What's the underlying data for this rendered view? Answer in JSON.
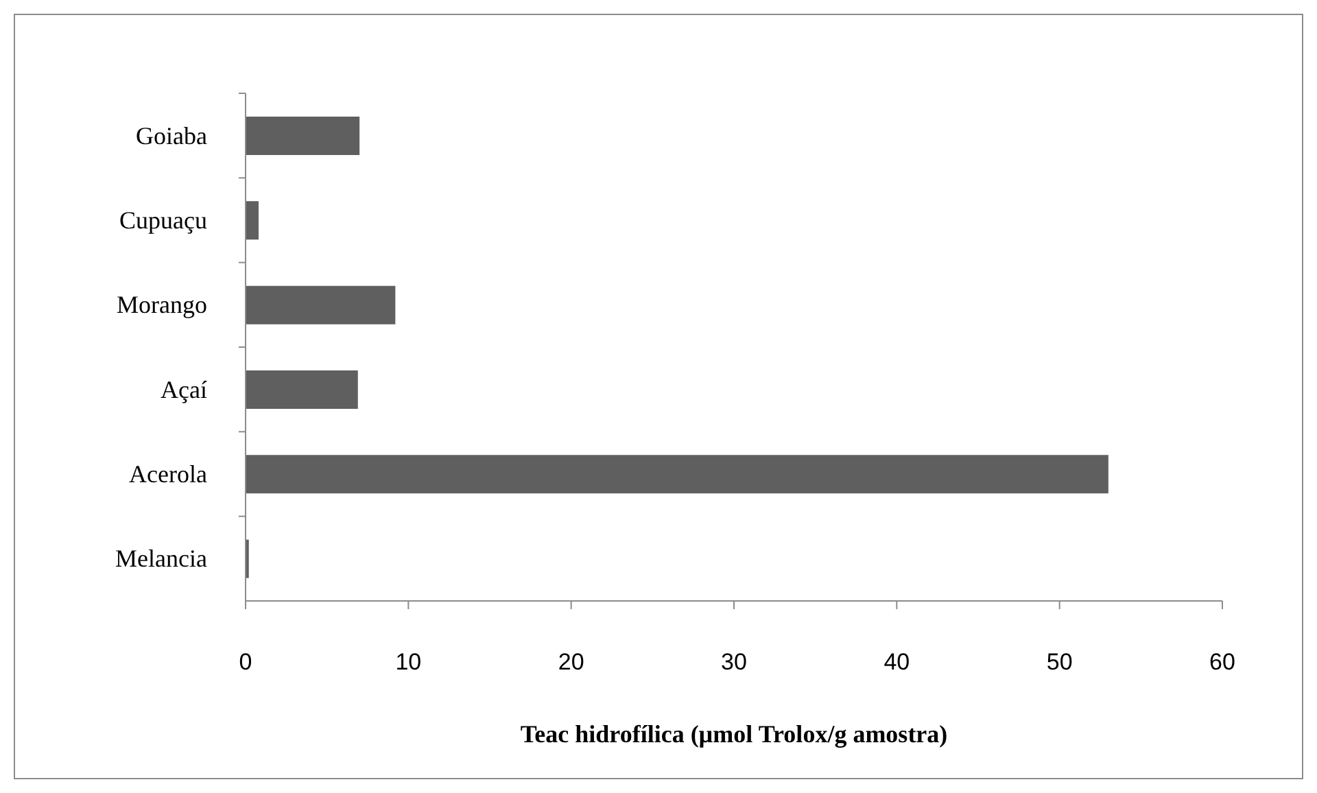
{
  "chart_data": {
    "type": "bar",
    "orientation": "horizontal",
    "categories": [
      "Goiaba",
      "Cupuaçu",
      "Morango",
      "Açaí",
      "Acerola",
      "Melancia"
    ],
    "values": [
      7,
      0.8,
      9.2,
      6.9,
      53,
      0.2
    ],
    "color": "#5f5f5f",
    "xlabel": "Teac hidrofílica (µmol Trolox/g amostra)",
    "xlim": [
      0,
      60
    ],
    "xticks": [
      0,
      10,
      20,
      30,
      40,
      50,
      60
    ]
  }
}
